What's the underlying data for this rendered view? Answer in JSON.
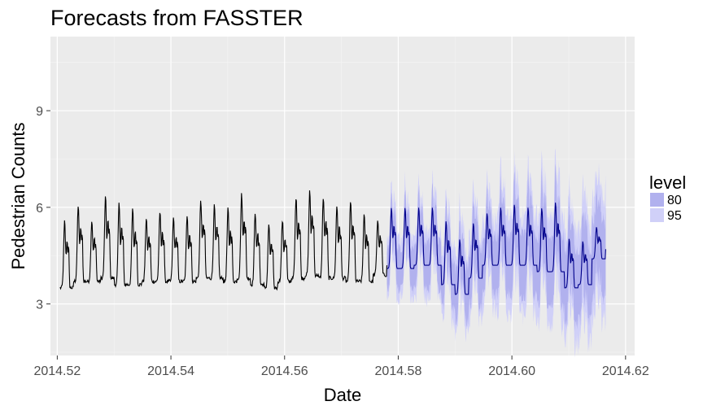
{
  "chart_data": {
    "type": "line",
    "title": "Forecasts from FASSTER",
    "xlabel": "Date",
    "ylabel": "Pedestrian Counts",
    "xlim": [
      2014.5188,
      2014.6216
    ],
    "ylim": [
      1.4,
      11.3
    ],
    "x_ticks": [
      2014.52,
      2014.54,
      2014.56,
      2014.58,
      2014.6,
      2014.62
    ],
    "x_tick_labels": [
      "2014.52",
      "2014.54",
      "2014.56",
      "2014.58",
      "2014.60",
      "2014.62"
    ],
    "y_ticks": [
      3,
      6,
      9
    ],
    "y_tick_labels": [
      "3",
      "6",
      "9"
    ],
    "grid": true,
    "legend": {
      "title": "level",
      "position": "right",
      "entries": [
        {
          "label": "80",
          "color": "#b1b1ee"
        },
        {
          "label": "95",
          "color": "#d0d0f8"
        }
      ]
    },
    "series": [
      {
        "name": "",
        "role": "observed",
        "color": "#000000",
        "x_start": 2014.5205,
        "x_end": 2014.578,
        "daily_peaks": [
          5.8,
          6.3,
          5.8,
          6.6,
          6.4,
          6.2,
          5.9,
          6.1,
          5.9,
          6.0,
          6.5,
          6.3,
          6.2,
          6.7,
          6.1,
          5.7,
          5.8,
          6.6,
          6.8,
          6.6,
          6.3,
          6.5,
          6.0,
          5.8
        ],
        "daily_troughs": [
          3.5,
          3.7,
          3.7,
          3.8,
          3.6,
          3.6,
          3.7,
          3.7,
          3.7,
          3.7,
          3.8,
          3.8,
          3.7,
          3.8,
          3.6,
          3.5,
          3.7,
          3.8,
          3.9,
          3.8,
          3.8,
          3.7,
          3.7,
          3.9
        ]
      },
      {
        "name": "",
        "role": "forecast",
        "color": "#00008b",
        "x_start": 2014.578,
        "x_end": 2014.6165,
        "daily_peaks": [
          6.2,
          6.2,
          6.2,
          6.2,
          5.8,
          5.2,
          5.7,
          6.0,
          6.2,
          6.3,
          6.2,
          6.2,
          6.4,
          5.2,
          5.1,
          5.5
        ],
        "daily_troughs": [
          4.1,
          4.1,
          4.2,
          4.2,
          3.6,
          3.3,
          3.8,
          4.2,
          4.2,
          4.2,
          4.2,
          4.0,
          4.0,
          3.5,
          3.6,
          4.4
        ]
      }
    ],
    "intervals": [
      {
        "level": "80",
        "color": "#b1b1ee",
        "half_width_start": 0.6,
        "half_width_end": 1.2
      },
      {
        "level": "95",
        "color": "#d0d0f8",
        "half_width_start": 0.9,
        "half_width_end": 1.9
      }
    ]
  }
}
